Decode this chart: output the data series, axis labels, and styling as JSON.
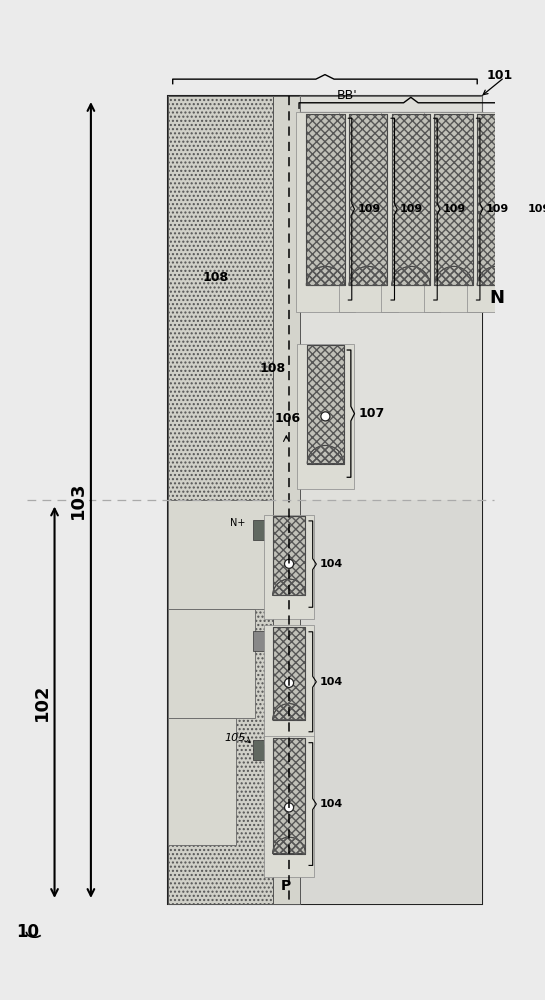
{
  "bg": "#ebebeb",
  "chip_fc": "#e4e4e0",
  "chip_ec": "#222222",
  "dotted_fc": "#d0d0c8",
  "dotted_ec": "#555555",
  "light_gray_fc": "#d8d8d4",
  "mid_gray_fc": "#c8c8c0",
  "fin_fc": "#c0c0b8",
  "fin_ec": "#333333",
  "oxide_fc": "#dcdcd4",
  "spacer_fc": "#d4d4cc",
  "dark_fc": "#686868",
  "darker_fc": "#909090",
  "white": "#ffffff",
  "black": "#000000",
  "label_10": "10",
  "label_101": "101",
  "label_102": "102",
  "label_103": "103",
  "label_104": "104",
  "label_105": "105",
  "label_106": "106",
  "label_107": "107",
  "label_108": "108",
  "label_109": "109",
  "label_BB": "BB'",
  "label_N": "N",
  "label_P": "P",
  "label_Nplus": "N+"
}
